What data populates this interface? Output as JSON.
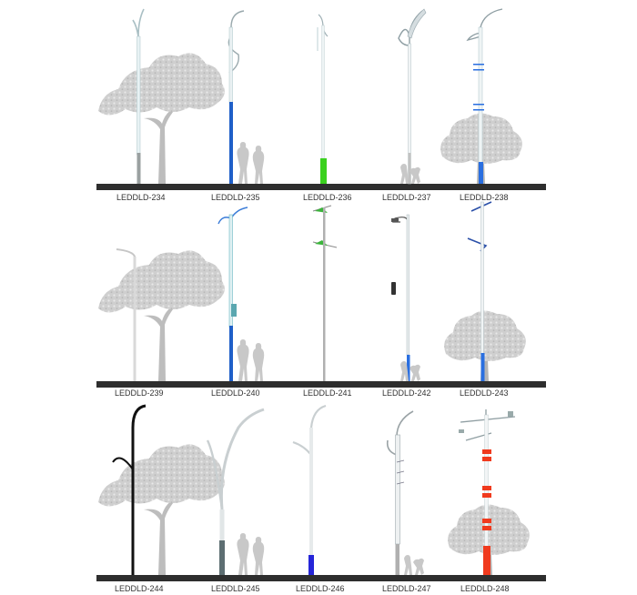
{
  "catalog": {
    "rows": [
      {
        "models": [
          {
            "code": "LEDDLD-234",
            "accent": "#9aa0a0"
          },
          {
            "code": "LEDDLD-235",
            "accent": "#1f5fc8"
          },
          {
            "code": "LEDDLD-236",
            "accent": "#3ad11e"
          },
          {
            "code": "LEDDLD-237",
            "accent": "#bfbfbf"
          },
          {
            "code": "LEDDLD-238",
            "accent": "#2a6fe0"
          }
        ]
      },
      {
        "models": [
          {
            "code": "LEDDLD-239",
            "accent": "#c8c8c8"
          },
          {
            "code": "LEDDLD-240",
            "accent": "#1f5fc8"
          },
          {
            "code": "LEDDLD-241",
            "accent": "#9a9a9a"
          },
          {
            "code": "LEDDLD-242",
            "accent": "#2a6fe0"
          },
          {
            "code": "LEDDLD-243",
            "accent": "#2a6fe0"
          }
        ]
      },
      {
        "models": [
          {
            "code": "LEDDLD-244",
            "accent": "#111111"
          },
          {
            "code": "LEDDLD-245",
            "accent": "#5d6e72"
          },
          {
            "code": "LEDDLD-246",
            "accent": "#2525d8"
          },
          {
            "code": "LEDDLD-247",
            "accent": "#9a9a9a"
          },
          {
            "code": "LEDDLD-248",
            "accent": "#f03a1e"
          }
        ]
      }
    ],
    "colors": {
      "ground": "#2e2e2e",
      "tree": "#c9c9c9",
      "pole_light": "#e8eef0",
      "pole_outline": "#9fb0b5"
    }
  }
}
